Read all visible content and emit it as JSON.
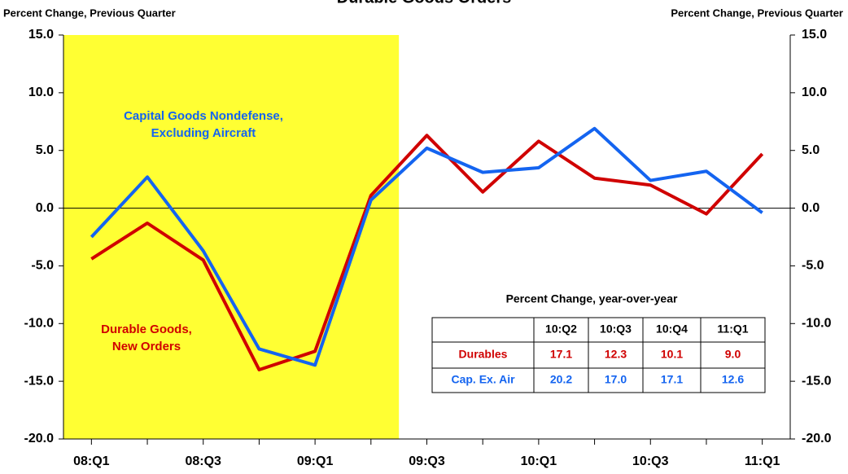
{
  "chart_data": {
    "type": "line",
    "title": "Durable Goods Orders",
    "y_label": "Percent Change, Previous Quarter",
    "y2_label": "Percent Change, Previous Quarter",
    "categories": [
      "08:Q1",
      null,
      "08:Q3",
      null,
      "09:Q1",
      null,
      "09:Q3",
      null,
      "10:Q1",
      null,
      "10:Q3",
      null,
      "11:Q1"
    ],
    "series": [
      {
        "name": [
          "Durable Goods,",
          "New Orders"
        ],
        "color": "#d00000",
        "values": [
          -4.4,
          -1.3,
          -4.5,
          -14.0,
          -12.4,
          1.1,
          6.3,
          1.4,
          5.8,
          2.6,
          2.0,
          -0.5,
          4.7
        ]
      },
      {
        "name": [
          "Capital Goods Nondefense,",
          "Excluding  Aircraft"
        ],
        "color": "#1464f0",
        "values": [
          -2.5,
          2.7,
          -3.7,
          -12.2,
          -13.6,
          0.7,
          5.2,
          3.1,
          3.5,
          6.9,
          2.4,
          3.2,
          -0.4
        ]
      }
    ],
    "ylim": [
      -20,
      15
    ],
    "yticks": [
      {
        "value": -20,
        "label": "-20.0"
      },
      {
        "value": -15,
        "label": "-15.0"
      },
      {
        "value": -10,
        "label": "-10.0"
      },
      {
        "value": -5,
        "label": "-5.0"
      },
      {
        "value": 0,
        "label": "0.0"
      },
      {
        "value": 5,
        "label": "5.0"
      },
      {
        "value": 10,
        "label": "10.0"
      },
      {
        "value": 15,
        "label": "15.0"
      }
    ],
    "y2lim": [
      -20,
      15
    ],
    "y2ticks": [
      {
        "value": -20,
        "label": "-20.0"
      },
      {
        "value": -15,
        "label": "-15.0"
      },
      {
        "value": -10,
        "label": "-10.0"
      },
      {
        "value": -5,
        "label": "-5.0"
      },
      {
        "value": 0,
        "label": "0.0"
      },
      {
        "value": 5,
        "label": "5.0"
      },
      {
        "value": 10,
        "label": "10.0"
      },
      {
        "value": 15,
        "label": "15.0"
      }
    ],
    "shade_color": "#ffff33",
    "table": {
      "title": "Percent Change, year-over-year",
      "columns": [
        "10:Q2",
        "10:Q3",
        "10:Q4",
        "11:Q1"
      ],
      "rows": [
        {
          "label": "Durables",
          "color": "#d00000",
          "values": [
            17.1,
            12.3,
            10.1,
            9.0
          ],
          "value_labels": [
            "17.1",
            "12.3",
            "10.1",
            "9.0"
          ]
        },
        {
          "label": "Cap. Ex. Air",
          "color": "#1464f0",
          "values": [
            20.2,
            17.0,
            17.1,
            12.6
          ],
          "value_labels": [
            "20.2",
            "17.0",
            "17.1",
            "12.6"
          ]
        }
      ]
    }
  }
}
